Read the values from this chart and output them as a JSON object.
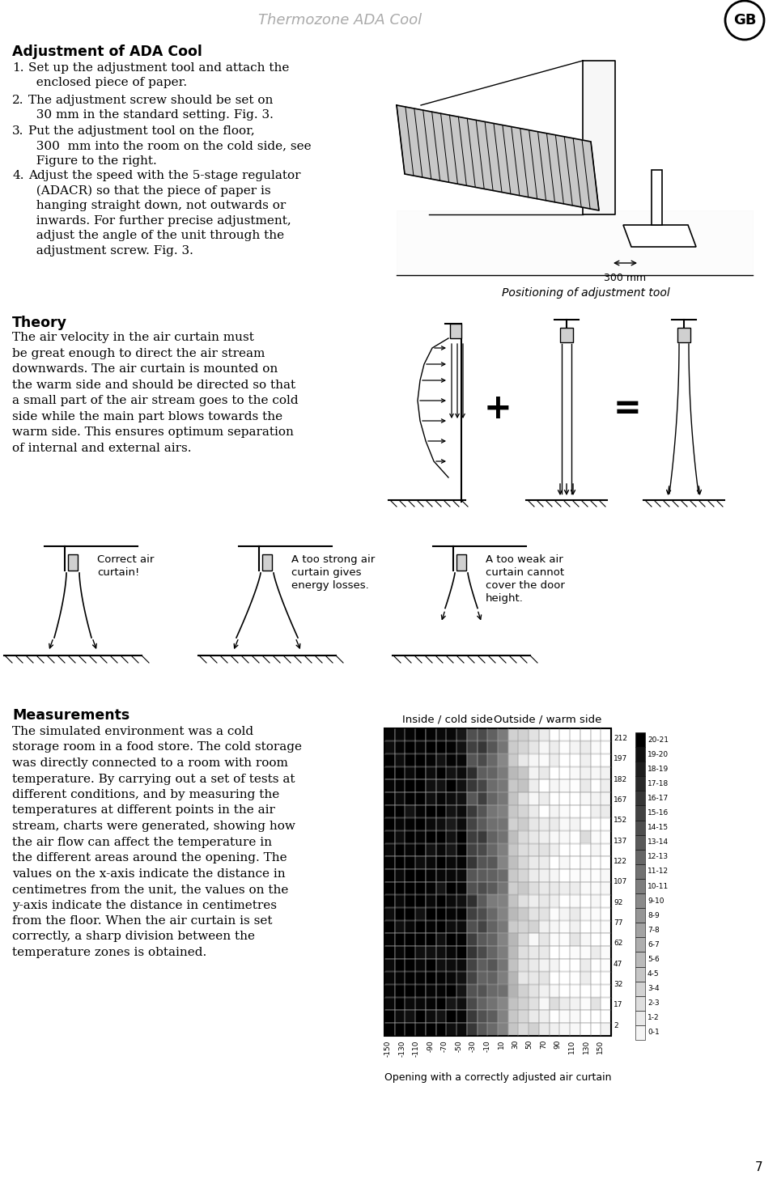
{
  "title": "Thermozone ADA Cool",
  "page_number": "7",
  "gb_label": "GB",
  "section1_title": "Adjustment of ADA Cool",
  "positioning_label": "Positioning of adjustment tool",
  "section2_title": "Theory",
  "section2_text": "The air velocity in the air curtain must\nbe great enough to direct the air stream\ndownwards. The air curtain is mounted on\nthe warm side and should be directed so that\na small part of the air stream goes to the cold\nside while the main part blows towards the\nwarm side. This ensures optimum separation\nof internal and external airs.",
  "correct_label": "Correct air\ncurtain!",
  "strong_label": "A too strong air\ncurtain gives\nenergy losses.",
  "weak_label": "A too weak air\ncurtain cannot\ncover the door\nheight.",
  "section3_title": "Measurements",
  "section3_text": "The simulated environment was a cold\nstorage room in a food store. The cold storage\nwas directly connected to a room with room\ntemperature. By carrying out a set of tests at\ndifferent conditions, and by measuring the\ntemperatures at different points in the air\nstream, charts were generated, showing how\nthe air flow can affect the temperature in\nthe different areas around the opening. The\nvalues on the x-axis indicate the distance in\ncentimetres from the unit, the values on the\ny-axis indicate the distance in centimetres\nfrom the floor. When the air curtain is set\ncorrectly, a sharp division between the\ntemperature zones is obtained.",
  "inside_label": "Inside / cold side",
  "outside_label": "Outside / warm side",
  "opening_label": "Opening with a correctly adjusted air curtain",
  "bg_color": "#ffffff",
  "text_color": "#000000",
  "title_color": "#aaaaaa",
  "legend_entries": [
    "20-21",
    "19-20",
    "18-19",
    "17-18",
    "16-17",
    "15-16",
    "14-15",
    "13-14",
    "12-13",
    "11-12",
    "10-11",
    "9-10",
    "8-9",
    "7-8",
    "6-7",
    "5-6",
    "4-5",
    "3-4",
    "2-3",
    "1-2",
    "0-1"
  ],
  "legend_colors": [
    "#000000",
    "#111111",
    "#1e1e1e",
    "#2a2a2a",
    "#363636",
    "#424242",
    "#4e4e4e",
    "#5a5a5a",
    "#666666",
    "#727272",
    "#7e7e7e",
    "#8a8a8a",
    "#969696",
    "#a2a2a2",
    "#aeaeae",
    "#bababa",
    "#c6c6c6",
    "#d2d2d2",
    "#dedede",
    "#eaeaea",
    "#f5f5f5"
  ],
  "y_axis_values": [
    "212",
    "197",
    "182",
    "167",
    "152",
    "137",
    "122",
    "107",
    "92",
    "77",
    "62",
    "47",
    "32",
    "17",
    "2"
  ],
  "x_axis_values": [
    "-150",
    "-130",
    "-110",
    "-90",
    "-70",
    "-50",
    "-30",
    "-10",
    "10",
    "30",
    "50",
    "70",
    "90",
    "110",
    "130",
    "150"
  ]
}
